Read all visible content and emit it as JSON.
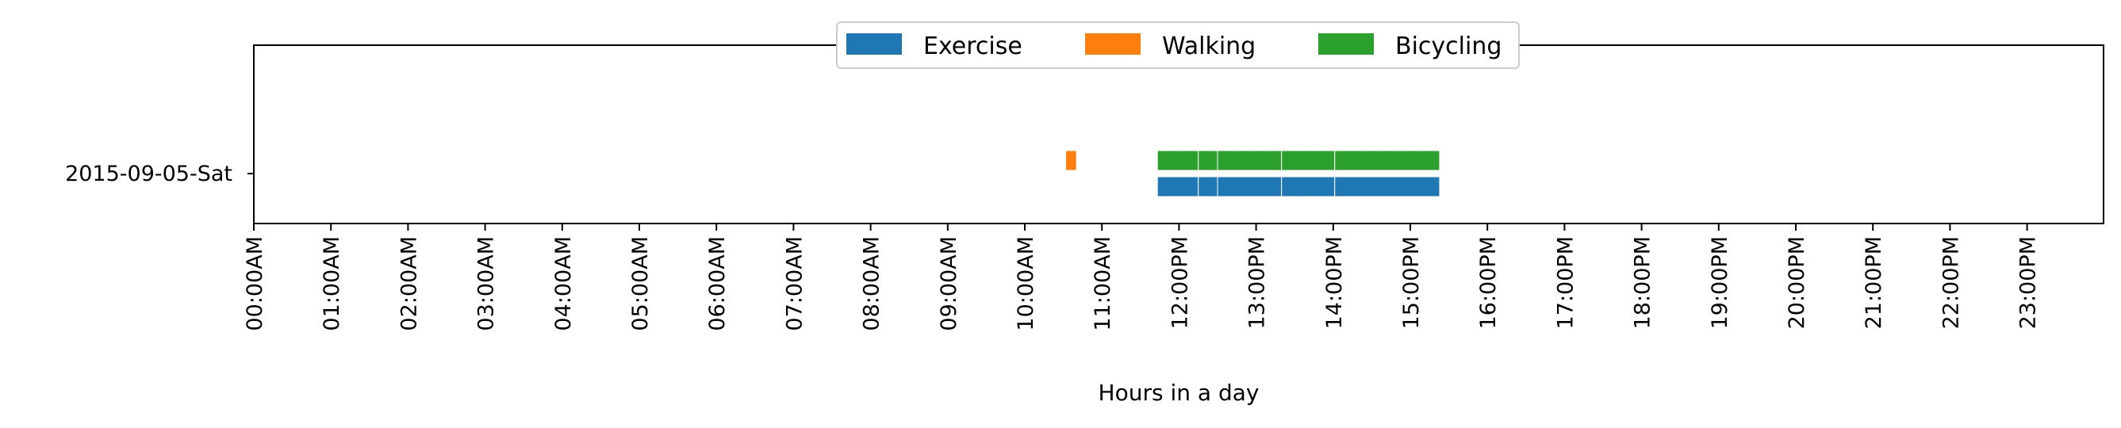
{
  "chart_data": {
    "type": "broken_barh",
    "xlabel": "Hours in a day",
    "xlim_hours": [
      0,
      24
    ],
    "x_ticks": [
      "00:00AM",
      "01:00AM",
      "02:00AM",
      "03:00AM",
      "04:00AM",
      "05:00AM",
      "06:00AM",
      "07:00AM",
      "08:00AM",
      "09:00AM",
      "10:00AM",
      "11:00AM",
      "12:00PM",
      "13:00PM",
      "14:00PM",
      "15:00PM",
      "16:00PM",
      "17:00PM",
      "18:00PM",
      "19:00PM",
      "20:00PM",
      "21:00PM",
      "22:00PM",
      "23:00PM"
    ],
    "y_categories": [
      "2015-09-05-Sat"
    ],
    "legend": {
      "position": "top-center",
      "entries": [
        "Exercise",
        "Walking",
        "Bicycling"
      ]
    },
    "grid": false,
    "series": [
      {
        "name": "Exercise",
        "color": "#1f77b4",
        "lane": "lower",
        "segments": [
          [
            11.72,
            12.25
          ],
          [
            12.25,
            12.5
          ],
          [
            12.5,
            13.33
          ],
          [
            13.33,
            14.02
          ],
          [
            14.02,
            15.38
          ]
        ]
      },
      {
        "name": "Walking",
        "color": "#ff7f0e",
        "lane": "upper",
        "segments": [
          [
            10.53,
            10.67
          ]
        ]
      },
      {
        "name": "Bicycling",
        "color": "#2ca02c",
        "lane": "upper",
        "segments": [
          [
            11.72,
            12.25
          ],
          [
            12.25,
            12.5
          ],
          [
            12.5,
            13.33
          ],
          [
            13.33,
            14.02
          ],
          [
            14.02,
            15.38
          ]
        ]
      }
    ]
  }
}
